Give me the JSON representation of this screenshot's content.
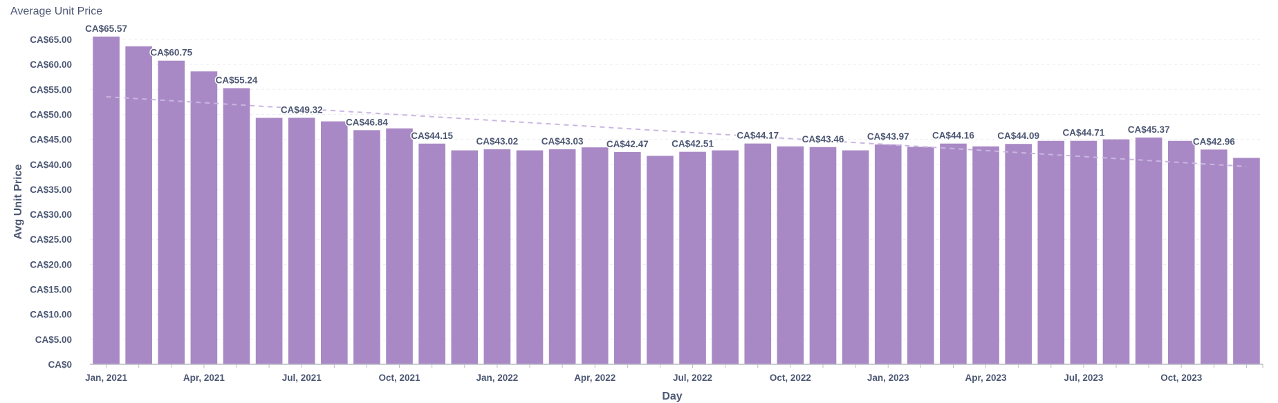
{
  "card": {
    "title": "Average Unit Price"
  },
  "colors": {
    "bar": "#a989c5",
    "trend": "#c9b6e0",
    "grid": "#ebedf0",
    "text": "#4c5773",
    "axis": "#b8bbc3"
  },
  "chart_data": {
    "type": "bar",
    "title": "Average Unit Price",
    "xlabel": "Day",
    "ylabel": "Avg Unit Price",
    "ylim": [
      0,
      65
    ],
    "y_ticks": [
      "CA$0",
      "CA$5.00",
      "CA$10.00",
      "CA$15.00",
      "CA$20.00",
      "CA$25.00",
      "CA$30.00",
      "CA$35.00",
      "CA$40.00",
      "CA$45.00",
      "CA$50.00",
      "CA$55.00",
      "CA$60.00",
      "CA$65.00"
    ],
    "y_tick_values": [
      0,
      5,
      10,
      15,
      20,
      25,
      30,
      35,
      40,
      45,
      50,
      55,
      60,
      65
    ],
    "grid": true,
    "trend_line": true,
    "categories": [
      "Jan, 2021",
      "Feb, 2021",
      "Mar, 2021",
      "Apr, 2021",
      "May, 2021",
      "Jun, 2021",
      "Jul, 2021",
      "Aug, 2021",
      "Sep, 2021",
      "Oct, 2021",
      "Nov, 2021",
      "Dec, 2021",
      "Jan, 2022",
      "Feb, 2022",
      "Mar, 2022",
      "Apr, 2022",
      "May, 2022",
      "Jun, 2022",
      "Jul, 2022",
      "Aug, 2022",
      "Sep, 2022",
      "Oct, 2022",
      "Nov, 2022",
      "Dec, 2022",
      "Jan, 2023",
      "Feb, 2023",
      "Mar, 2023",
      "Apr, 2023",
      "May, 2023",
      "Jun, 2023",
      "Jul, 2023",
      "Aug, 2023",
      "Sep, 2023",
      "Oct, 2023",
      "Nov, 2023",
      "Dec, 2023"
    ],
    "x_tick_labels": [
      "Jan, 2021",
      "Apr, 2021",
      "Jul, 2021",
      "Oct, 2021",
      "Jan, 2022",
      "Apr, 2022",
      "Jul, 2022",
      "Oct, 2022",
      "Jan, 2023",
      "Apr, 2023",
      "Jul, 2023",
      "Oct, 2023"
    ],
    "values": [
      65.57,
      63.6,
      60.75,
      58.6,
      55.24,
      49.3,
      49.32,
      48.6,
      46.84,
      47.2,
      44.15,
      42.8,
      43.02,
      42.8,
      43.03,
      43.4,
      42.47,
      41.7,
      42.51,
      42.8,
      44.17,
      43.6,
      43.46,
      42.8,
      43.97,
      43.5,
      44.16,
      43.6,
      44.09,
      44.7,
      44.71,
      45.0,
      45.37,
      44.7,
      42.96,
      41.3
    ],
    "data_labels": [
      "CA$65.57",
      "",
      "CA$60.75",
      "",
      "CA$55.24",
      "",
      "CA$49.32",
      "",
      "CA$46.84",
      "",
      "CA$44.15",
      "",
      "CA$43.02",
      "",
      "CA$43.03",
      "",
      "CA$42.47",
      "",
      "CA$42.51",
      "",
      "CA$44.17",
      "",
      "CA$43.46",
      "",
      "CA$43.97",
      "",
      "CA$44.16",
      "",
      "CA$44.09",
      "",
      "CA$44.71",
      "",
      "CA$45.37",
      "",
      "CA$42.96",
      ""
    ]
  }
}
